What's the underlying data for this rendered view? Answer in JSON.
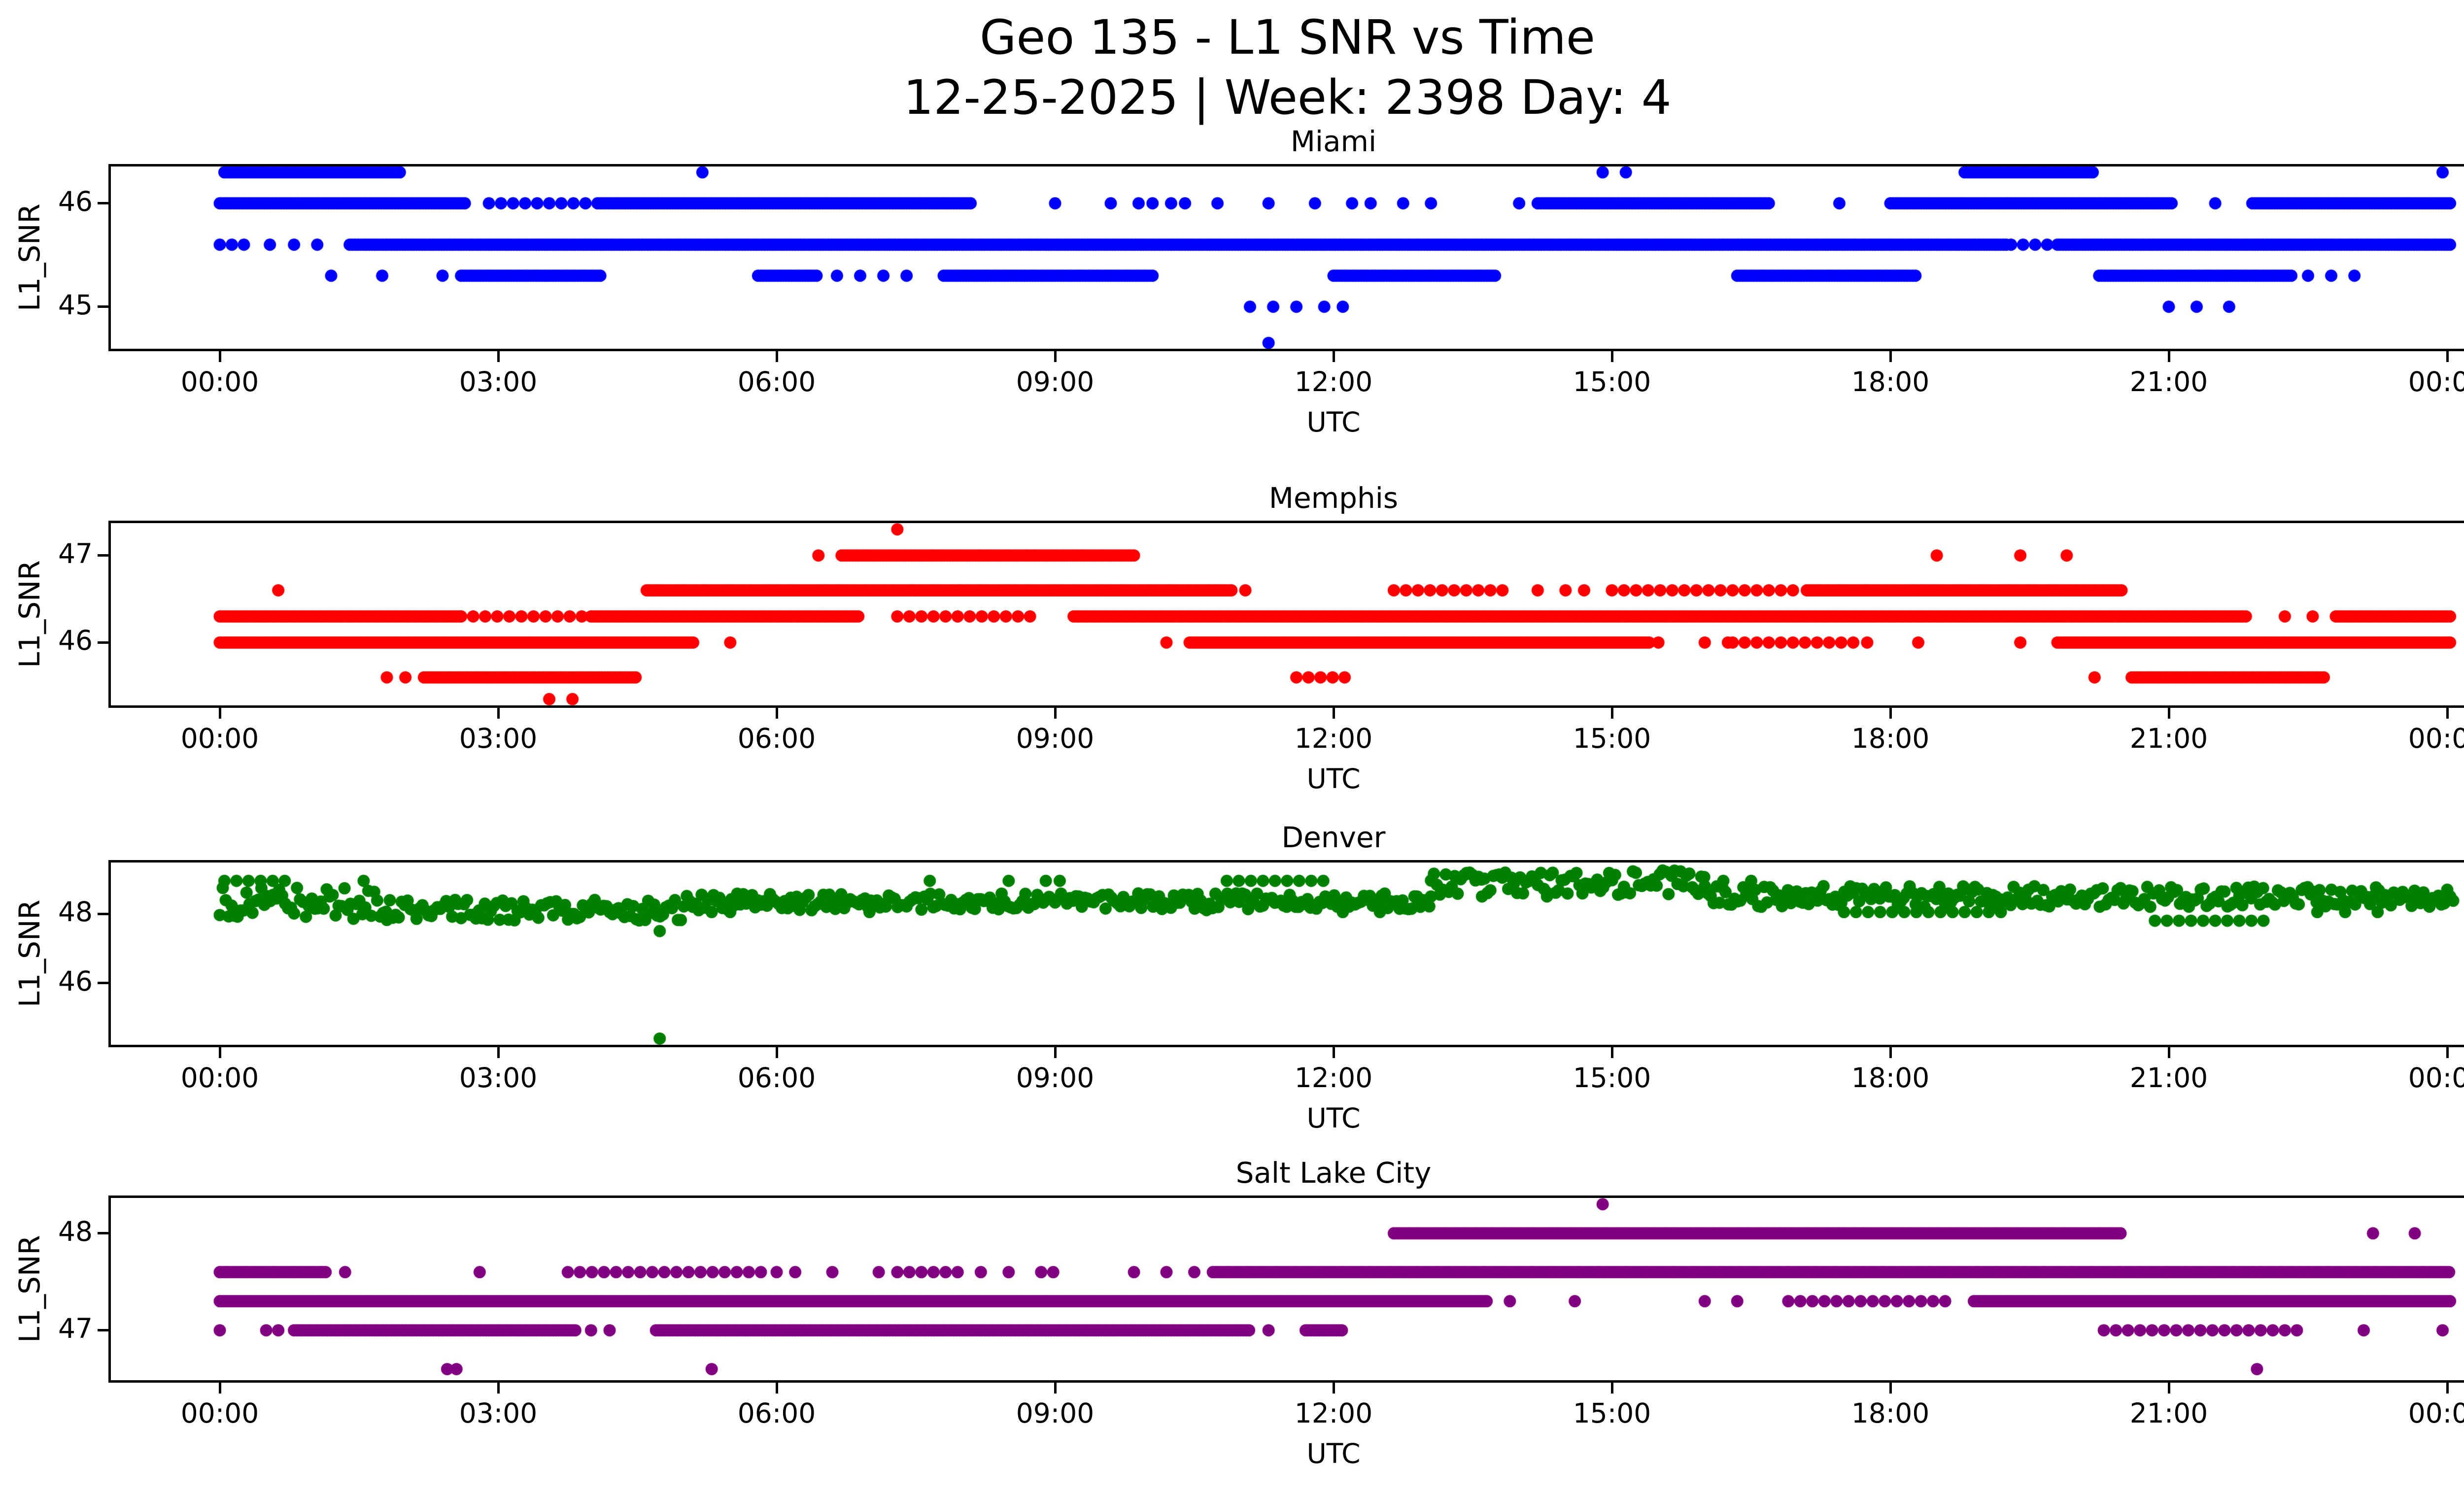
{
  "figure": {
    "title_line1": "Geo 135 - L1 SNR vs Time",
    "title_line2": "12-25-2025 | Week: 2398 Day: 4",
    "background": "#ffffff",
    "text_color": "#000000"
  },
  "axes_common": {
    "xlabel": "UTC",
    "ylabel": "L1_SNR",
    "xlim": [
      -1.2,
      25.2
    ],
    "xticks": [
      {
        "hour": 0,
        "label": "00:00"
      },
      {
        "hour": 3,
        "label": "03:00"
      },
      {
        "hour": 6,
        "label": "06:00"
      },
      {
        "hour": 9,
        "label": "09:00"
      },
      {
        "hour": 12,
        "label": "12:00"
      },
      {
        "hour": 15,
        "label": "15:00"
      },
      {
        "hour": 18,
        "label": "18:00"
      },
      {
        "hour": 21,
        "label": "21:00"
      },
      {
        "hour": 24,
        "label": "00:00"
      }
    ]
  },
  "chart_data": [
    {
      "type": "scatter",
      "station": "Miami",
      "color": "#0000ff",
      "ylim": [
        44.57,
        46.38
      ],
      "yticks": [
        45,
        46
      ],
      "levels": [
        {
          "snr": 46.3,
          "solid": [
            [
              0.05,
              1.95
            ],
            [
              18.8,
              20.2
            ]
          ],
          "spaced": [],
          "dots": [
            5.2,
            14.9,
            15.15,
            23.95
          ]
        },
        {
          "snr": 46.0,
          "solid": [
            [
              0,
              2.65
            ],
            [
              4.1,
              8.1
            ],
            [
              14.2,
              16.7
            ],
            [
              18.0,
              21.05
            ],
            [
              21.9,
              24.05
            ]
          ],
          "spaced": [
            [
              2.9,
              4.1
            ]
          ],
          "dots": [
            9.0,
            9.6,
            9.9,
            10.05,
            10.25,
            10.4,
            10.75,
            11.3,
            11.8,
            12.2,
            12.4,
            12.75,
            13.05,
            14.0,
            17.45,
            21.5
          ]
        },
        {
          "snr": 45.6,
          "solid": [
            [
              1.4,
              19.25
            ],
            [
              19.8,
              24.05
            ]
          ],
          "spaced": [
            [
              0,
              0.3
            ],
            [
              19.3,
              19.75
            ]
          ],
          "dots": [
            0.54,
            0.8,
            1.05
          ]
        },
        {
          "snr": 45.3,
          "solid": [
            [
              2.6,
              4.1
            ],
            [
              5.8,
              6.45
            ],
            [
              7.8,
              10.05
            ],
            [
              12.0,
              13.75
            ],
            [
              16.35,
              18.3
            ],
            [
              20.25,
              22.35
            ]
          ],
          "spaced": [],
          "dots": [
            1.2,
            1.75,
            2.4,
            6.65,
            6.9,
            7.15,
            7.4,
            22.5,
            22.75,
            23.0
          ]
        },
        {
          "snr": 45.0,
          "solid": [],
          "spaced": [],
          "dots": [
            11.1,
            11.35,
            11.6,
            11.9,
            12.1,
            21.0,
            21.3,
            21.65
          ]
        },
        {
          "snr": 44.65,
          "solid": [],
          "spaced": [],
          "dots": [
            11.3
          ]
        }
      ]
    },
    {
      "type": "scatter",
      "station": "Memphis",
      "color": "#ff0000",
      "ylim": [
        45.25,
        47.4
      ],
      "yticks": [
        46,
        47
      ],
      "levels": [
        {
          "snr": 47.3,
          "solid": [],
          "spaced": [],
          "dots": [
            7.3
          ]
        },
        {
          "snr": 47.0,
          "solid": [
            [
              6.7,
              9.85
            ]
          ],
          "spaced": [],
          "dots": [
            6.45,
            18.5,
            19.4,
            19.9
          ]
        },
        {
          "snr": 46.6,
          "solid": [
            [
              4.6,
              10.9
            ],
            [
              17.1,
              20.5
            ]
          ],
          "spaced": [
            [
              12.65,
              13.95
            ],
            [
              15.0,
              16.95
            ]
          ],
          "dots": [
            0.63,
            11.05,
            14.2,
            14.5,
            14.7
          ]
        },
        {
          "snr": 46.3,
          "solid": [
            [
              0,
              2.6
            ],
            [
              4.0,
              6.9
            ],
            [
              9.2,
              21.85
            ],
            [
              22.8,
              24.05
            ]
          ],
          "spaced": [
            [
              2.6,
              4.0
            ],
            [
              7.3,
              8.8
            ]
          ],
          "dots": [
            22.25,
            22.55
          ]
        },
        {
          "snr": 46.0,
          "solid": [
            [
              0,
              5.1
            ],
            [
              10.45,
              15.4
            ],
            [
              19.8,
              24.05
            ]
          ],
          "spaced": [
            [
              16.3,
              17.7
            ]
          ],
          "dots": [
            5.5,
            10.2,
            15.5,
            16.0,
            16.25,
            17.75,
            18.3,
            19.4
          ]
        },
        {
          "snr": 45.6,
          "solid": [
            [
              2.2,
              4.5
            ],
            [
              20.6,
              22.7
            ]
          ],
          "spaced": [
            [
              11.6,
              12.25
            ]
          ],
          "dots": [
            1.8,
            2.0,
            20.2
          ]
        },
        {
          "snr": 45.35,
          "solid": [],
          "spaced": [],
          "dots": [
            3.55,
            3.8
          ]
        }
      ]
    },
    {
      "type": "scatter",
      "station": "Denver",
      "color": "#008000",
      "ylim": [
        44.15,
        49.55
      ],
      "yticks": [
        46,
        48
      ],
      "jitter_bands": [
        {
          "t": [
            0,
            1.8
          ],
          "base": 48.3,
          "spread": 0.45
        },
        {
          "t": [
            1.8,
            5.0
          ],
          "base": 48.1,
          "spread": 0.3
        },
        {
          "t": [
            5.0,
            13.05
          ],
          "base": 48.35,
          "spread": 0.25
        },
        {
          "t": [
            13.05,
            16.0
          ],
          "base": 48.9,
          "spread": 0.35
        },
        {
          "t": [
            16.0,
            24.07
          ],
          "base": 48.5,
          "spread": 0.3
        }
      ],
      "levels": [
        {
          "snr": 48.95,
          "solid": [],
          "spaced": [
            [
              0.05,
              0.8
            ],
            [
              10.85,
              11.9
            ]
          ],
          "dots": [
            1.55,
            7.65,
            8.5,
            8.9,
            9.05,
            16.2,
            16.5
          ]
        },
        {
          "snr": 48.5,
          "solid": [],
          "spaced": [],
          "dots": [
            12.9,
            13.05,
            13.6,
            14.3
          ]
        },
        {
          "snr": 48.05,
          "solid": [],
          "spaced": [
            [
              17.5,
              19.3
            ]
          ],
          "dots": [
            4.2,
            4.7,
            5.3,
            5.5,
            7.0,
            12.1,
            12.5,
            22.6,
            22.9,
            23.25
          ]
        },
        {
          "snr": 47.8,
          "solid": [],
          "spaced": [
            [
              20.85,
              22.1
            ]
          ],
          "dots": []
        },
        {
          "snr": 47.5,
          "solid": [],
          "spaced": [],
          "dots": [
            4.74
          ]
        },
        {
          "snr": 44.4,
          "solid": [],
          "spaced": [],
          "dots": [
            4.74
          ]
        }
      ]
    },
    {
      "type": "scatter",
      "station": "Salt Lake City",
      "color": "#800080",
      "ylim": [
        46.46,
        48.39
      ],
      "yticks": [
        47,
        48
      ],
      "levels": [
        {
          "snr": 48.3,
          "solid": [],
          "spaced": [],
          "dots": [
            14.9
          ]
        },
        {
          "snr": 48.0,
          "solid": [
            [
              12.65,
              20.5
            ]
          ],
          "spaced": [],
          "dots": [
            23.2,
            23.65
          ]
        },
        {
          "snr": 47.6,
          "solid": [
            [
              0,
              1.15
            ],
            [
              10.7,
              24.05
            ]
          ],
          "spaced": [
            [
              3.75,
              5.9
            ],
            [
              7.3,
              8.0
            ],
            [
              8.85,
              9.1
            ]
          ],
          "dots": [
            1.35,
            2.8,
            6.0,
            6.2,
            6.6,
            7.1,
            8.2,
            8.5,
            9.85,
            10.2,
            10.5
          ]
        },
        {
          "snr": 47.3,
          "solid": [
            [
              0,
              13.65
            ],
            [
              18.9,
              24.05
            ]
          ],
          "spaced": [
            [
              16.9,
              18.7
            ]
          ],
          "dots": [
            13.9,
            14.6,
            16.0,
            16.35
          ]
        },
        {
          "snr": 47.0,
          "solid": [
            [
              0.8,
              3.85
            ],
            [
              4.7,
              11.1
            ],
            [
              11.7,
              12.1
            ]
          ],
          "spaced": [
            [
              20.3,
              22.45
            ]
          ],
          "dots": [
            0.0,
            0.5,
            0.63,
            4.0,
            4.2,
            11.3,
            23.1,
            23.95
          ]
        },
        {
          "snr": 46.6,
          "solid": [],
          "spaced": [],
          "dots": [
            2.45,
            2.55,
            5.3,
            21.95
          ]
        }
      ]
    }
  ]
}
